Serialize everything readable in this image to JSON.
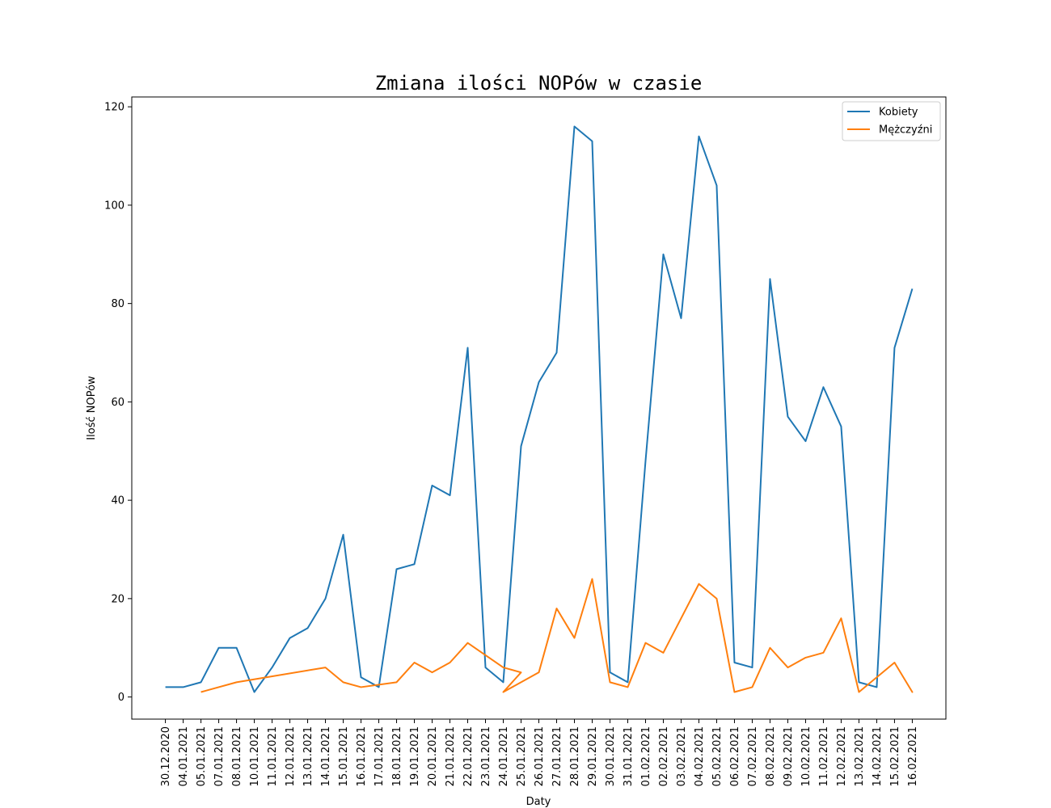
{
  "chart_data": {
    "type": "line",
    "title": "Zmiana ilości NOPów w czasie",
    "xlabel": "Daty",
    "ylabel": "Ilość NOPów",
    "ylim": [
      -4.5,
      122
    ],
    "yticks": [
      0,
      20,
      40,
      60,
      80,
      100,
      120
    ],
    "grid": false,
    "legend_position": "top-right",
    "categories": [
      "30.12.2020",
      "04.01.2021",
      "05.01.2021",
      "07.01.2021",
      "08.01.2021",
      "10.01.2021",
      "11.01.2021",
      "12.01.2021",
      "13.01.2021",
      "14.01.2021",
      "15.01.2021",
      "16.01.2021",
      "17.01.2021",
      "18.01.2021",
      "19.01.2021",
      "20.01.2021",
      "21.01.2021",
      "22.01.2021",
      "23.01.2021",
      "24.01.2021",
      "25.01.2021",
      "26.01.2021",
      "27.01.2021",
      "28.01.2021",
      "29.01.2021",
      "30.01.2021",
      "31.01.2021",
      "01.02.2021",
      "02.02.2021",
      "03.02.2021",
      "04.02.2021",
      "05.02.2021",
      "06.02.2021",
      "07.02.2021",
      "08.02.2021",
      "09.02.2021",
      "10.02.2021",
      "11.02.2021",
      "12.02.2021",
      "13.02.2021",
      "14.02.2021",
      "15.02.2021",
      "16.02.2021"
    ],
    "series": [
      {
        "name": "Kobiety",
        "color": "#1f77b4",
        "points": [
          [
            "30.12.2020",
            2
          ],
          [
            "04.01.2021",
            2
          ],
          [
            "05.01.2021",
            3
          ],
          [
            "07.01.2021",
            10
          ],
          [
            "08.01.2021",
            10
          ],
          [
            "10.01.2021",
            1
          ],
          [
            "11.01.2021",
            6
          ],
          [
            "12.01.2021",
            12
          ],
          [
            "13.01.2021",
            14
          ],
          [
            "14.01.2021",
            20
          ],
          [
            "15.01.2021",
            33
          ],
          [
            "16.01.2021",
            4
          ],
          [
            "17.01.2021",
            2
          ],
          [
            "18.01.2021",
            26
          ],
          [
            "19.01.2021",
            27
          ],
          [
            "20.01.2021",
            43
          ],
          [
            "21.01.2021",
            41
          ],
          [
            "22.01.2021",
            71
          ],
          [
            "23.01.2021",
            6
          ],
          [
            "24.01.2021",
            3
          ],
          [
            "25.01.2021",
            51
          ],
          [
            "26.01.2021",
            64
          ],
          [
            "27.01.2021",
            70
          ],
          [
            "28.01.2021",
            116
          ],
          [
            "29.01.2021",
            113
          ],
          [
            "30.01.2021",
            5
          ],
          [
            "31.01.2021",
            3
          ],
          [
            "01.02.2021",
            48
          ],
          [
            "02.02.2021",
            90
          ],
          [
            "03.02.2021",
            77
          ],
          [
            "04.02.2021",
            114
          ],
          [
            "05.02.2021",
            104
          ],
          [
            "06.02.2021",
            7
          ],
          [
            "07.02.2021",
            6
          ],
          [
            "08.02.2021",
            85
          ],
          [
            "09.02.2021",
            57
          ],
          [
            "10.02.2021",
            52
          ],
          [
            "11.02.2021",
            63
          ],
          [
            "12.02.2021",
            55
          ],
          [
            "13.02.2021",
            3
          ],
          [
            "14.02.2021",
            2
          ],
          [
            "15.02.2021",
            71
          ],
          [
            "16.02.2021",
            83
          ]
        ]
      },
      {
        "name": "Mężczyźni",
        "color": "#ff7f0e",
        "points": [
          [
            "05.01.2021",
            1
          ],
          [
            "08.01.2021",
            3
          ],
          [
            "14.01.2021",
            6
          ],
          [
            "15.01.2021",
            3
          ],
          [
            "16.01.2021",
            2
          ],
          [
            "18.01.2021",
            3
          ],
          [
            "19.01.2021",
            7
          ],
          [
            "20.01.2021",
            5
          ],
          [
            "21.01.2021",
            7
          ],
          [
            "22.01.2021",
            11
          ],
          [
            "24.01.2021",
            6
          ],
          [
            "25.01.2021",
            5
          ],
          [
            "24.01.2021",
            1
          ],
          [
            "26.01.2021",
            5
          ],
          [
            "27.01.2021",
            18
          ],
          [
            "28.01.2021",
            12
          ],
          [
            "29.01.2021",
            24
          ],
          [
            "30.01.2021",
            3
          ],
          [
            "31.01.2021",
            2
          ],
          [
            "01.02.2021",
            11
          ],
          [
            "02.02.2021",
            9
          ],
          [
            "04.02.2021",
            23
          ],
          [
            "05.02.2021",
            20
          ],
          [
            "06.02.2021",
            1
          ],
          [
            "07.02.2021",
            2
          ],
          [
            "08.02.2021",
            10
          ],
          [
            "09.02.2021",
            6
          ],
          [
            "10.02.2021",
            8
          ],
          [
            "11.02.2021",
            9
          ],
          [
            "12.02.2021",
            16
          ],
          [
            "13.02.2021",
            1
          ],
          [
            "14.02.2021",
            4
          ],
          [
            "15.02.2021",
            7
          ],
          [
            "16.02.2021",
            1
          ],
          [
            "15.02.2021",
            7
          ]
        ]
      }
    ]
  }
}
